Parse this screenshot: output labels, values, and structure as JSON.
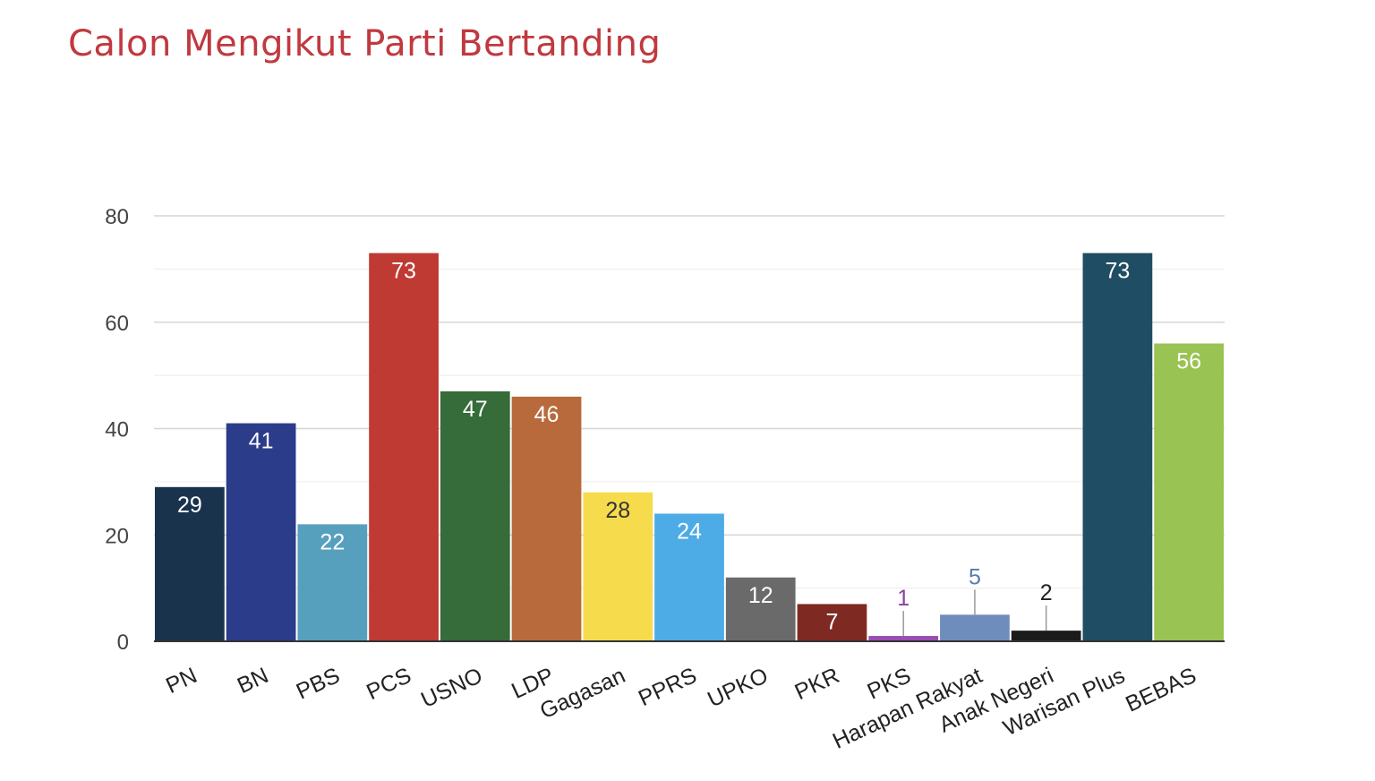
{
  "chart_data": {
    "type": "bar",
    "title": "Calon Mengikut Parti Bertanding",
    "xlabel": "",
    "ylabel": "",
    "ylim": [
      0,
      80
    ],
    "yticks": [
      0,
      20,
      40,
      60,
      80
    ],
    "grid": true,
    "legend": "none",
    "categories": [
      "PN",
      "BN",
      "PBS",
      "PCS",
      "USNO",
      "LDP",
      "Gagasan",
      "PPRS",
      "UPKO",
      "PKR",
      "PKS",
      "Harapan Rakyat",
      "Anak Negeri",
      "Warisan Plus",
      "BEBAS"
    ],
    "values": [
      29,
      41,
      22,
      73,
      47,
      46,
      28,
      24,
      12,
      7,
      1,
      5,
      2,
      73,
      56
    ],
    "colors": [
      "#1a334d",
      "#2b3c8a",
      "#57a0bd",
      "#be3a33",
      "#366b3a",
      "#b86a3c",
      "#f6dc4c",
      "#4dabe6",
      "#6a6a6a",
      "#7e2a22",
      "#9a4cb4",
      "#6f8dbc",
      "#1b1b1b",
      "#1f4d63",
      "#99c352"
    ],
    "label_colors": [
      "#ffffff",
      "#ffffff",
      "#ffffff",
      "#ffffff",
      "#ffffff",
      "#ffffff",
      "#333333",
      "#ffffff",
      "#ffffff",
      "#ffffff",
      "#8a3fa6",
      "#5a7aab",
      "#222222",
      "#ffffff",
      "#ffffff"
    ]
  }
}
